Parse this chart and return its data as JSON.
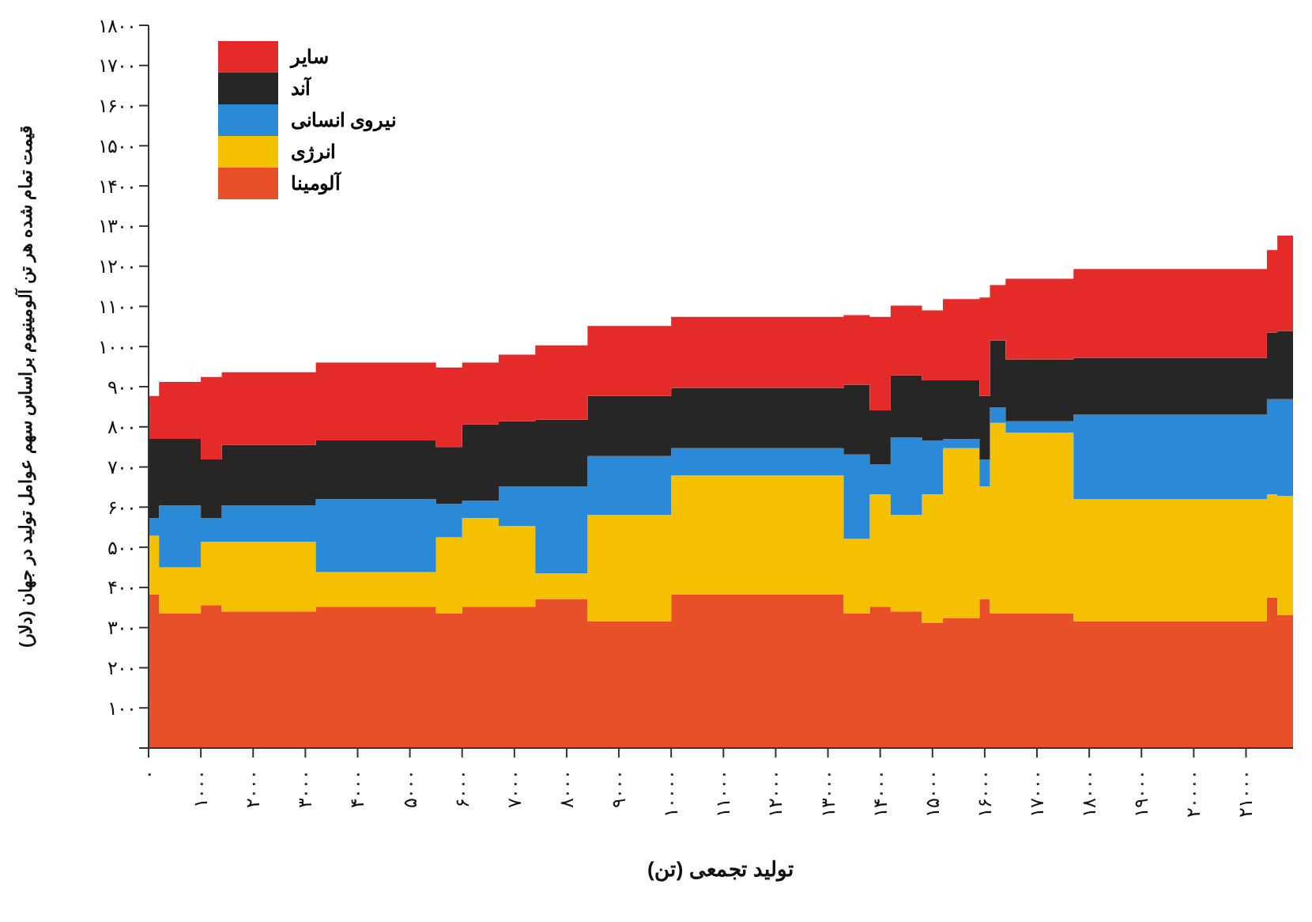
{
  "chart_data": {
    "type": "area",
    "stacked": true,
    "xlabel": "تولید تجمعی (تن)",
    "ylabel": "قیمت تمام شده هر تن آلومینیوم براساس سهم عوامل تولید در جهان (دلار)",
    "x": [
      0,
      200,
      1000,
      1400,
      3200,
      5500,
      6000,
      6700,
      7400,
      8400,
      10000,
      13300,
      13800,
      14200,
      14800,
      15200,
      15900,
      16100,
      16400,
      17700,
      21400,
      21600,
      21900
    ],
    "series": [
      {
        "name": "آلومینا",
        "color": "#e8502a",
        "values": [
          383,
          336,
          356,
          340,
          352,
          336,
          352,
          352,
          371,
          316,
          383,
          336,
          352,
          340,
          312,
          324,
          371,
          336,
          336,
          316,
          375,
          332,
          332
        ]
      },
      {
        "name": "انرژی",
        "color": "#f5c000",
        "values": [
          146,
          114,
          158,
          174,
          86,
          189,
          221,
          201,
          64,
          265,
          296,
          185,
          280,
          241,
          320,
          423,
          281,
          474,
          450,
          304,
          257,
          296,
          296
        ]
      },
      {
        "name": "نیروی انسانی",
        "color": "#2a8ad8",
        "values": [
          44,
          154,
          59,
          90,
          182,
          83,
          43,
          99,
          217,
          146,
          68,
          210,
          75,
          193,
          134,
          23,
          67,
          39,
          28,
          210,
          237,
          241,
          241
        ]
      },
      {
        "name": "آند",
        "color": "#262626",
        "values": [
          197,
          166,
          146,
          151,
          146,
          142,
          190,
          162,
          166,
          150,
          150,
          174,
          134,
          154,
          150,
          146,
          158,
          166,
          154,
          142,
          166,
          170,
          170
        ]
      },
      {
        "name": "سایر",
        "color": "#e52a2a",
        "values": [
          107,
          142,
          205,
          181,
          194,
          198,
          154,
          166,
          185,
          174,
          177,
          173,
          233,
          174,
          174,
          202,
          245,
          138,
          201,
          221,
          205,
          237,
          237
        ]
      }
    ],
    "xlim": [
      0,
      21900
    ],
    "xticks": [
      {
        "value": 0,
        "label": "۰"
      },
      {
        "value": 1000,
        "label": "۱۰۰۰"
      },
      {
        "value": 2000,
        "label": "۲۰۰۰"
      },
      {
        "value": 3000,
        "label": "۳۰۰۰"
      },
      {
        "value": 4000,
        "label": "۴۰۰۰"
      },
      {
        "value": 5000,
        "label": "۵۰۰۰"
      },
      {
        "value": 6000,
        "label": "۶۰۰۰"
      },
      {
        "value": 7000,
        "label": "۷۰۰۰"
      },
      {
        "value": 8000,
        "label": "۸۰۰۰"
      },
      {
        "value": 9000,
        "label": "۹۰۰۰"
      },
      {
        "value": 10000,
        "label": "۱۰۰۰۰"
      },
      {
        "value": 11000,
        "label": "۱۱۰۰۰"
      },
      {
        "value": 12000,
        "label": "۱۲۰۰۰"
      },
      {
        "value": 13000,
        "label": "۱۳۰۰۰"
      },
      {
        "value": 14000,
        "label": "۱۴۰۰۰"
      },
      {
        "value": 15000,
        "label": "۱۵۰۰۰"
      },
      {
        "value": 16000,
        "label": "۱۶۰۰۰"
      },
      {
        "value": 17000,
        "label": "۱۷۰۰۰"
      },
      {
        "value": 18000,
        "label": "۱۸۰۰۰"
      },
      {
        "value": 19000,
        "label": "۱۹۰۰۰"
      },
      {
        "value": 20000,
        "label": "۲۰۰۰۰"
      },
      {
        "value": 21000,
        "label": "۲۱۰۰۰"
      }
    ],
    "ylim": [
      0,
      1800
    ],
    "yticks": [
      {
        "value": 0,
        "label": null
      },
      {
        "value": 100,
        "label": "۱۰۰"
      },
      {
        "value": 200,
        "label": "۲۰۰"
      },
      {
        "value": 300,
        "label": "۳۰۰"
      },
      {
        "value": 400,
        "label": "۴۰۰"
      },
      {
        "value": 500,
        "label": "۵۰۰"
      },
      {
        "value": 600,
        "label": "۶۰۰"
      },
      {
        "value": 700,
        "label": "۷۰۰"
      },
      {
        "value": 800,
        "label": "۸۰۰"
      },
      {
        "value": 900,
        "label": "۹۰۰"
      },
      {
        "value": 1000,
        "label": "۱۰۰۰"
      },
      {
        "value": 1100,
        "label": "۱۱۰۰"
      },
      {
        "value": 1200,
        "label": "۱۲۰۰"
      },
      {
        "value": 1300,
        "label": "۱۳۰۰"
      },
      {
        "value": 1400,
        "label": "۱۴۰۰"
      },
      {
        "value": 1500,
        "label": "۱۵۰۰"
      },
      {
        "value": 1600,
        "label": "۱۶۰۰"
      },
      {
        "value": 1700,
        "label": "۱۷۰۰"
      },
      {
        "value": 1800,
        "label": "۱۸۰۰"
      }
    ],
    "legend": "top left"
  }
}
